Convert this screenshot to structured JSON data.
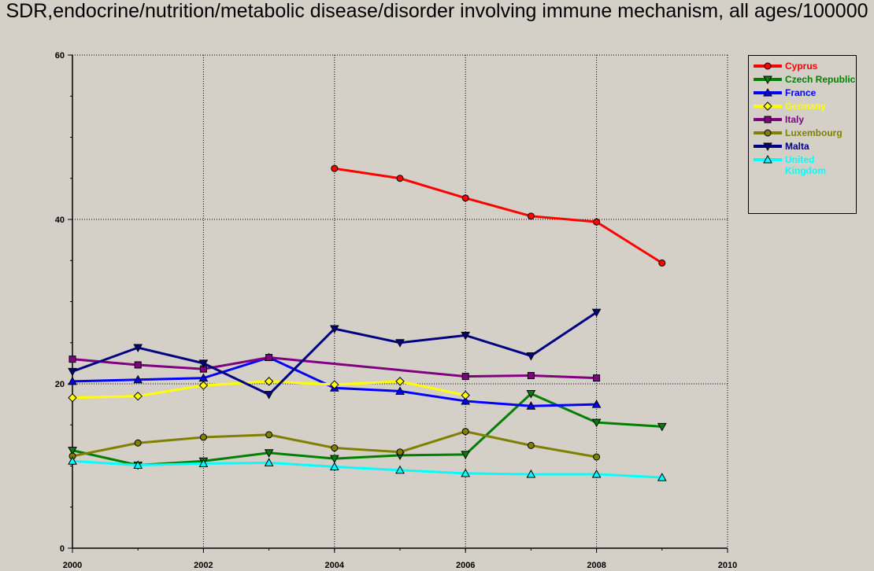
{
  "chart_data": {
    "type": "line",
    "title": "SDR,endocrine/nutrition/metabolic disease/disorder involving immune mechanism, all ages/100000",
    "x": [
      2000,
      2001,
      2002,
      2003,
      2004,
      2005,
      2006,
      2007,
      2008,
      2009
    ],
    "xlim": [
      2000,
      2010
    ],
    "xticks": [
      2000,
      2002,
      2004,
      2006,
      2008,
      2010
    ],
    "ylim": [
      0,
      60
    ],
    "yticks": [
      0,
      20,
      40,
      60
    ],
    "grid": true,
    "legend": "right",
    "series": [
      {
        "name": "Cyprus",
        "color": "#ff0000",
        "marker": "circle",
        "values": [
          null,
          null,
          null,
          null,
          46.2,
          45.0,
          42.6,
          40.4,
          39.7,
          34.7
        ]
      },
      {
        "name": "Czech Republic",
        "color": "#008000",
        "marker": "triangle-down",
        "values": [
          11.9,
          10.1,
          10.6,
          11.6,
          10.9,
          11.3,
          11.4,
          18.8,
          15.3,
          14.8
        ]
      },
      {
        "name": "France",
        "color": "#0000ff",
        "marker": "triangle-up",
        "values": [
          20.3,
          20.5,
          20.7,
          23.2,
          19.5,
          19.1,
          17.9,
          17.3,
          17.5,
          null
        ]
      },
      {
        "name": "Germany",
        "color": "#ffff00",
        "marker": "diamond",
        "values": [
          18.3,
          18.5,
          19.8,
          20.3,
          19.9,
          20.3,
          18.6,
          null,
          null,
          null
        ]
      },
      {
        "name": "Italy",
        "color": "#800080",
        "marker": "square",
        "x": [
          2000,
          2001,
          2002,
          2003,
          2006,
          2007,
          2008
        ],
        "values": [
          23.0,
          22.3,
          21.8,
          23.2,
          20.9,
          21.0,
          20.7
        ]
      },
      {
        "name": "Luxembourg",
        "color": "#808000",
        "marker": "circle",
        "values": [
          11.2,
          12.8,
          13.5,
          13.8,
          12.2,
          11.7,
          14.2,
          12.5,
          11.1,
          null
        ]
      },
      {
        "name": "Malta",
        "color": "#000080",
        "marker": "triangle-down",
        "values": [
          21.5,
          24.4,
          22.5,
          18.7,
          26.7,
          25.0,
          25.9,
          23.4,
          28.7,
          null
        ]
      },
      {
        "name": "United Kingdom",
        "color": "#00ffff",
        "marker": "triangle-up",
        "values": [
          10.6,
          10.1,
          10.3,
          10.4,
          9.9,
          9.5,
          9.1,
          9.0,
          9.0,
          8.6
        ]
      }
    ]
  }
}
